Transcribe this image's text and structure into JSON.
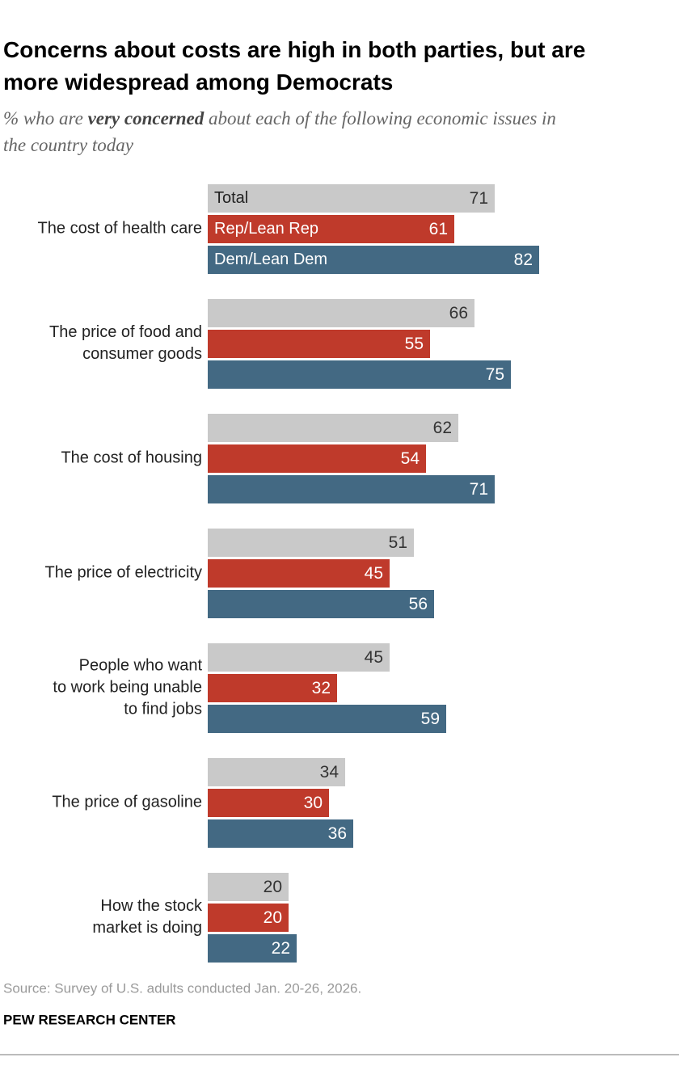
{
  "chart_data": {
    "type": "grouped-hbar",
    "title": "Concerns about costs are high in both parties, but are\nmore widespread among Democrats",
    "subtitle": [
      "% who are ",
      "very concerned",
      " about each of the following economic issues in\nthe country today"
    ],
    "categories": [
      "The cost of health care",
      "The price of food and\nconsumer goods",
      "The cost of housing",
      "The price of electricity",
      "People who want\nto work being unable\nto find jobs",
      "The price of gasoline",
      "How the stock\nmarket is doing"
    ],
    "series": [
      {
        "name": "Total",
        "color": "#c9c9c9",
        "values": [
          71,
          66,
          62,
          51,
          45,
          34,
          20
        ]
      },
      {
        "name": "Rep/Lean Rep",
        "color": "#bf3a2b",
        "values": [
          61,
          55,
          54,
          45,
          32,
          30,
          20
        ]
      },
      {
        "name": "Dem/Lean Dem",
        "color": "#436983",
        "values": [
          82,
          75,
          71,
          56,
          59,
          36,
          22
        ]
      }
    ],
    "xlim": [
      0,
      100
    ],
    "source": "Source: Survey of U.S. adults conducted Jan. 20-26, 2026.",
    "credit": "PEW RESEARCH CENTER"
  }
}
